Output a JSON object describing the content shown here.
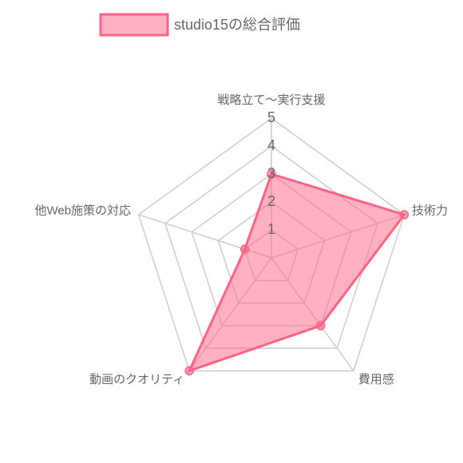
{
  "chart_data": {
    "type": "radar",
    "categories": [
      "戦略立て〜実行支援",
      "技術力",
      "費用感",
      "動画のクオリティ",
      "他Web施策の対応"
    ],
    "series": [
      {
        "name": "studio15の総合評価",
        "color": "#ff6384",
        "values": [
          3,
          5,
          3,
          5,
          1
        ]
      }
    ],
    "rlim": [
      0,
      5
    ],
    "rticks": [
      1,
      2,
      3,
      4,
      5
    ],
    "grid": true,
    "legend": "top"
  }
}
